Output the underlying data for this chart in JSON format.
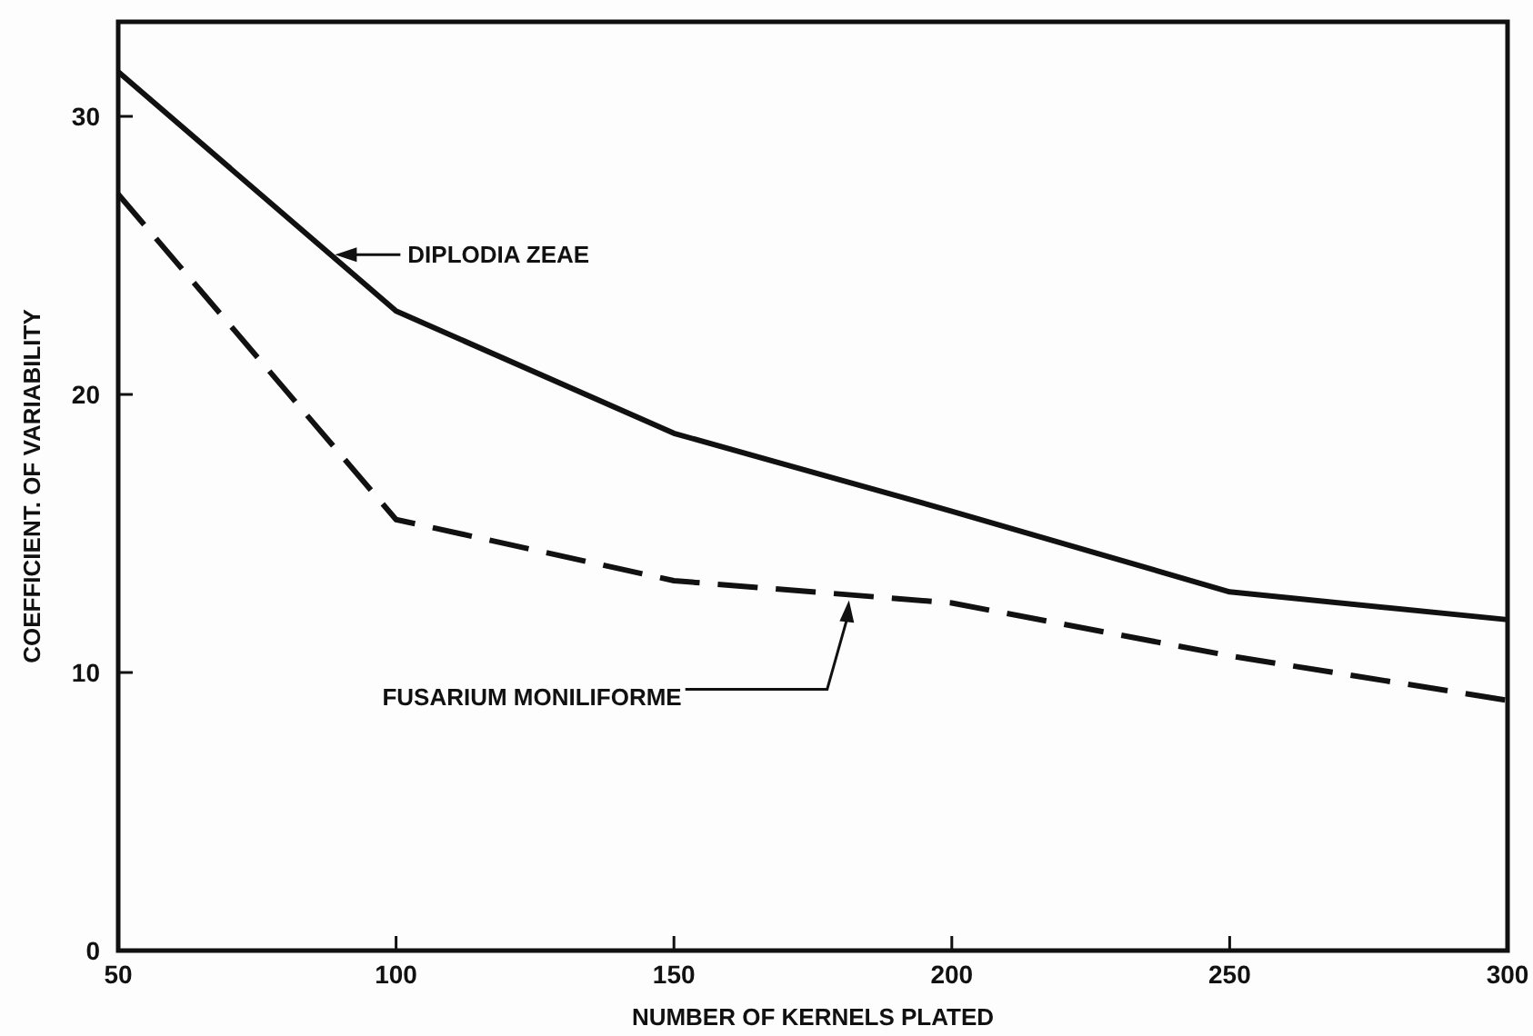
{
  "chart_data": {
    "type": "line",
    "xlabel": "NUMBER OF KERNELS PLATED",
    "ylabel": "COEFFICIENT. OF VARIABILITY",
    "x": [
      50,
      100,
      150,
      200,
      250,
      300
    ],
    "series": [
      {
        "color": "#111111",
        "line_style": "solid",
        "values": [
          31.6,
          23.0,
          18.6,
          15.8,
          12.9,
          11.9
        ]
      },
      {
        "color": "#111111",
        "line_style": "dashed",
        "values": [
          27.2,
          15.5,
          13.3,
          12.5,
          10.6,
          9.0
        ]
      }
    ],
    "xlim": [
      50,
      300
    ],
    "xticks": [
      50,
      100,
      150,
      200,
      250,
      300
    ],
    "ylim": [
      0,
      33.4
    ],
    "yticks": [
      0,
      10,
      20,
      30
    ],
    "grid": false,
    "marker": "none",
    "annotations": [
      "DIPLODIA ZEAE",
      "FUSARIUM MONILIFORME"
    ]
  }
}
